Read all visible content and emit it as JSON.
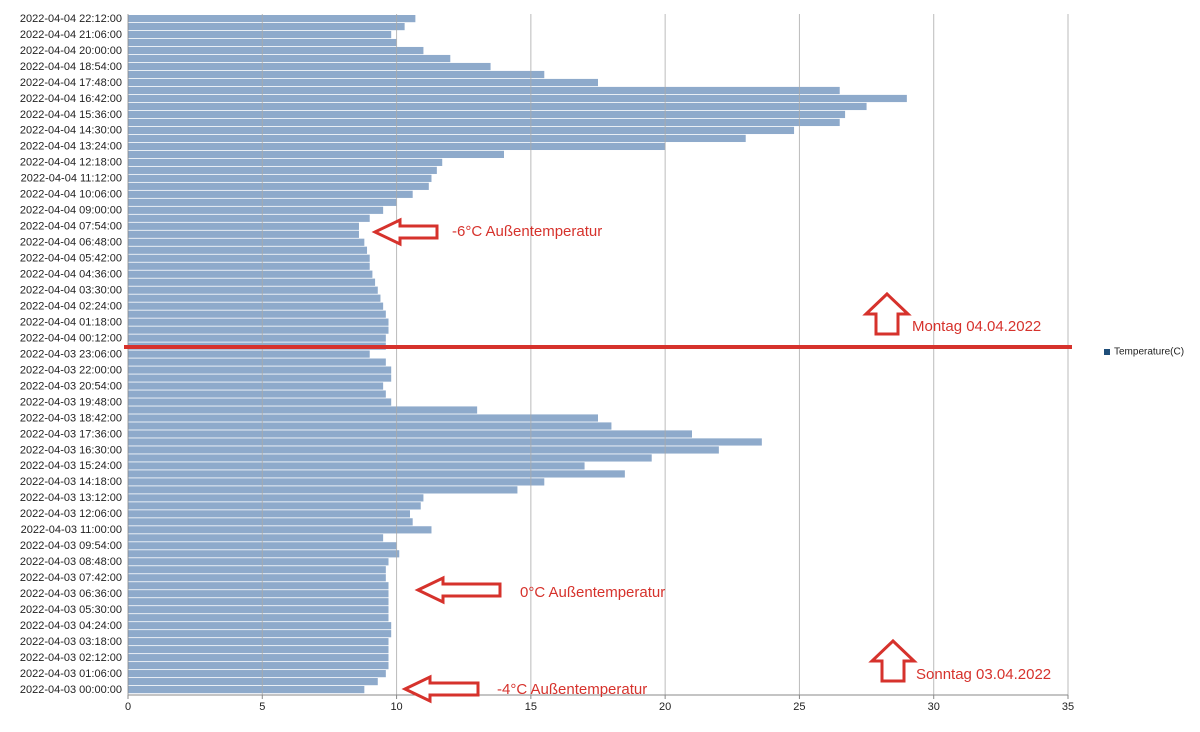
{
  "chart_data": {
    "type": "barh",
    "categories": [
      "2022-04-03 00:00:00",
      null,
      "2022-04-03 01:06:00",
      null,
      "2022-04-03 02:12:00",
      null,
      "2022-04-03 03:18:00",
      null,
      "2022-04-03 04:24:00",
      null,
      "2022-04-03 05:30:00",
      null,
      "2022-04-03 06:36:00",
      null,
      "2022-04-03 07:42:00",
      null,
      "2022-04-03 08:48:00",
      null,
      "2022-04-03 09:54:00",
      null,
      "2022-04-03 11:00:00",
      null,
      "2022-04-03 12:06:00",
      null,
      "2022-04-03 13:12:00",
      null,
      "2022-04-03 14:18:00",
      null,
      "2022-04-03 15:24:00",
      null,
      "2022-04-03 16:30:00",
      null,
      "2022-04-03 17:36:00",
      null,
      "2022-04-03 18:42:00",
      null,
      "2022-04-03 19:48:00",
      null,
      "2022-04-03 20:54:00",
      null,
      "2022-04-03 22:00:00",
      null,
      "2022-04-03 23:06:00",
      null,
      "2022-04-04 00:12:00",
      null,
      "2022-04-04 01:18:00",
      null,
      "2022-04-04 02:24:00",
      null,
      "2022-04-04 03:30:00",
      null,
      "2022-04-04 04:36:00",
      null,
      "2022-04-04 05:42:00",
      null,
      "2022-04-04 06:48:00",
      null,
      "2022-04-04 07:54:00",
      null,
      "2022-04-04 09:00:00",
      null,
      "2022-04-04 10:06:00",
      null,
      "2022-04-04 11:12:00",
      null,
      "2022-04-04 12:18:00",
      null,
      "2022-04-04 13:24:00",
      null,
      "2022-04-04 14:30:00",
      null,
      "2022-04-04 15:36:00",
      null,
      "2022-04-04 16:42:00",
      null,
      "2022-04-04 17:48:00",
      null,
      "2022-04-04 18:54:00",
      null,
      "2022-04-04 20:00:00",
      null,
      "2022-04-04 21:06:00",
      null,
      "2022-04-04 22:12:00"
    ],
    "series": [
      {
        "name": "Temperature(C)",
        "color": "#8eaacb",
        "values": [
          8.8,
          9.3,
          9.6,
          9.7,
          9.7,
          9.7,
          9.7,
          9.8,
          9.8,
          9.7,
          9.7,
          9.7,
          9.7,
          9.7,
          9.6,
          9.6,
          9.7,
          10.1,
          10.0,
          9.5,
          11.3,
          10.6,
          10.5,
          10.9,
          11.0,
          14.5,
          15.5,
          18.5,
          17.0,
          19.5,
          22.0,
          23.6,
          21.0,
          18.0,
          17.5,
          13.0,
          9.8,
          9.6,
          9.5,
          9.8,
          9.8,
          9.6,
          9.0,
          9.6,
          9.6,
          9.7,
          9.7,
          9.6,
          9.5,
          9.4,
          9.3,
          9.2,
          9.1,
          9.0,
          9.0,
          8.9,
          8.8,
          8.6,
          8.6,
          9.0,
          9.5,
          10.0,
          10.6,
          11.2,
          11.3,
          11.5,
          11.7,
          14.0,
          20.0,
          23.0,
          24.8,
          26.5,
          26.7,
          27.5,
          29.0,
          26.5,
          17.5,
          15.5,
          13.5,
          12.0,
          11.0,
          10.0,
          9.8,
          10.3,
          10.7
        ]
      }
    ],
    "xlim": [
      0,
      35
    ],
    "xticks": [
      0,
      5,
      10,
      15,
      20,
      25,
      30,
      35
    ],
    "grid": true,
    "legend": "right",
    "annotations": [
      "-6°C Außentemperatur",
      "0°C Außentemperatur",
      "-4°C Außentemperatur",
      "Montag 04.04.2022",
      "Sonntag 03.04.2022"
    ]
  }
}
